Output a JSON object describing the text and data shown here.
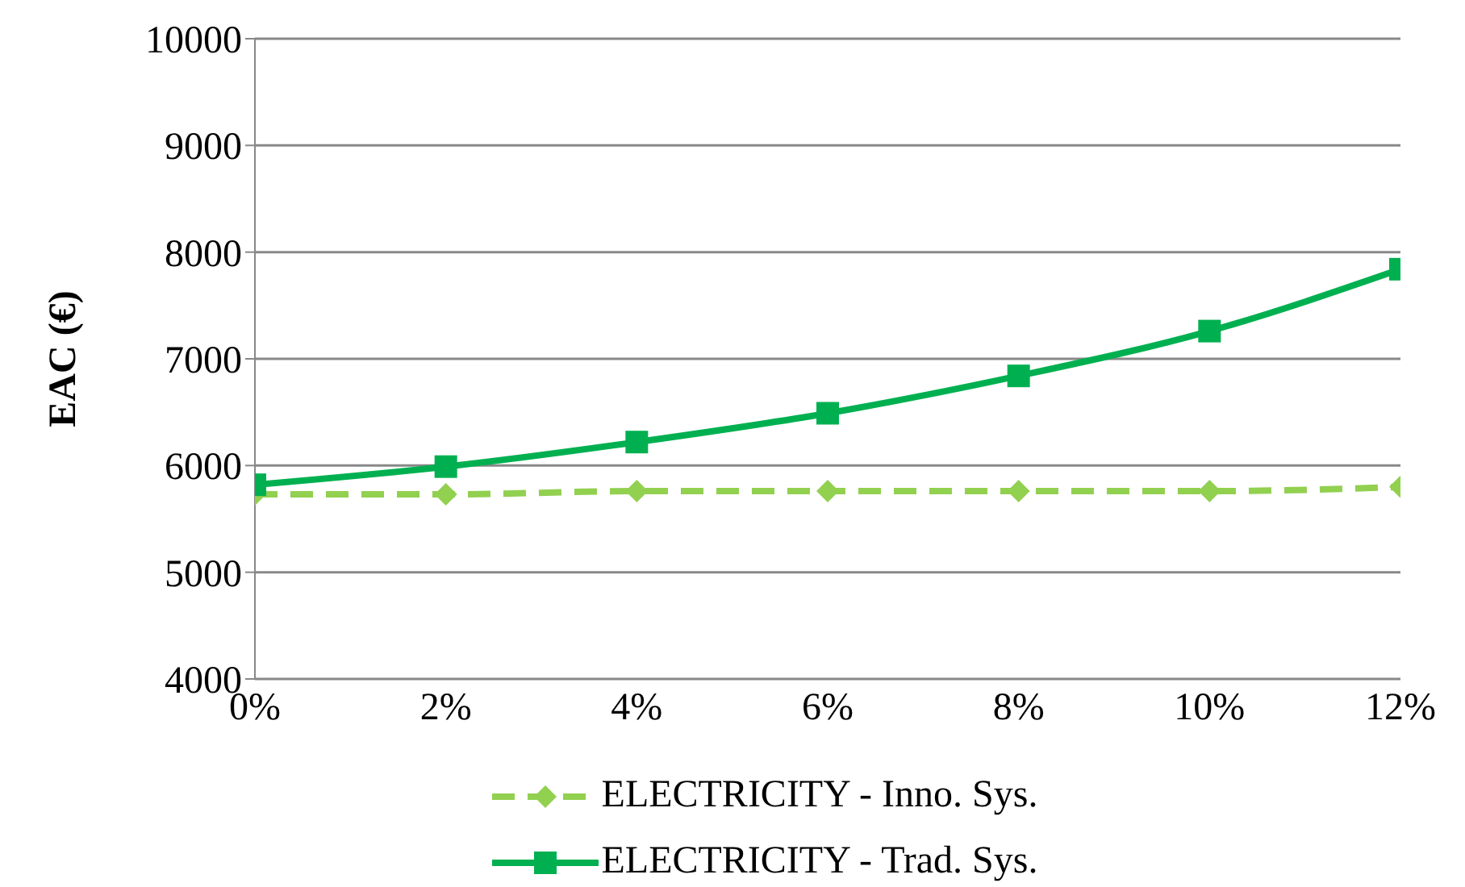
{
  "chart_data": {
    "type": "line",
    "ylabel": "EAC (€)",
    "x": [
      0,
      2,
      4,
      6,
      8,
      10,
      12
    ],
    "xlim": [
      0,
      12
    ],
    "xticks": [
      {
        "value": 0,
        "label": "0%"
      },
      {
        "value": 2,
        "label": "2%"
      },
      {
        "value": 4,
        "label": "4%"
      },
      {
        "value": 6,
        "label": "6%"
      },
      {
        "value": 8,
        "label": "8%"
      },
      {
        "value": 10,
        "label": "10%"
      },
      {
        "value": 12,
        "label": "12%"
      }
    ],
    "ylim": [
      4000,
      10000
    ],
    "yticks": [
      4000,
      5000,
      6000,
      7000,
      8000,
      9000,
      10000
    ],
    "grid": "y",
    "legend": "bottom",
    "series": [
      {
        "name": "ELECTRICITY - Inno. Sys.",
        "color": "#92d050",
        "values": [
          5730,
          5730,
          5760,
          5760,
          5760,
          5760,
          5800
        ],
        "marker": "diamond",
        "line_style": "dashed"
      },
      {
        "name": "ELECTRICITY - Trad. Sys.",
        "color": "#00b050",
        "values": [
          5820,
          5990,
          6220,
          6490,
          6840,
          7260,
          7840
        ],
        "marker": "square",
        "line_style": "solid"
      }
    ]
  }
}
